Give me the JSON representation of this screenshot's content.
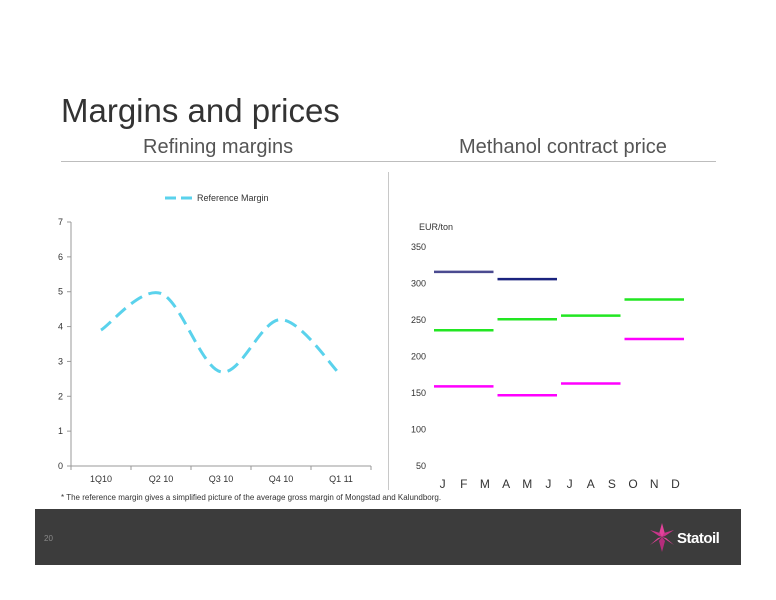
{
  "slide": {
    "title": "Margins and prices",
    "footnote": "* The reference margin gives a simplified picture of the average gross margin of Mongstad and Kalundborg.",
    "page_number": "20",
    "logo_text": "Statoil",
    "logo_icon": "statoil-star-icon"
  },
  "chart_data": [
    {
      "type": "line",
      "title": "Refining margins",
      "xlabel": "",
      "ylabel": "",
      "categories": [
        "1Q10",
        "Q2 10",
        "Q3 10",
        "Q4 10",
        "Q1 11"
      ],
      "series": [
        {
          "name": "Reference Margin",
          "values": [
            3.9,
            4.95,
            2.7,
            4.2,
            2.6
          ],
          "color": "#5ad2ec",
          "dash": "dashed",
          "smooth": true
        }
      ],
      "ylim": [
        0,
        7
      ],
      "yticks": [
        0,
        1,
        2,
        3,
        4,
        5,
        6,
        7
      ],
      "legend": "top-center",
      "grid": false
    },
    {
      "type": "bar",
      "subtype": "floating-segments",
      "title": "Methanol contract price",
      "ylabel": "EUR/ton",
      "categories": [
        "J",
        "F",
        "M",
        "A",
        "M",
        "J",
        "J",
        "A",
        "S",
        "O",
        "N",
        "D"
      ],
      "ylim": [
        50,
        350
      ],
      "yticks": [
        50,
        100,
        150,
        200,
        250,
        300,
        350
      ],
      "segments": [
        {
          "from": 0,
          "to": 2,
          "value": 316,
          "color": "#4a4a90"
        },
        {
          "from": 0,
          "to": 2,
          "value": 236,
          "color": "#22e622"
        },
        {
          "from": 0,
          "to": 2,
          "value": 159,
          "color": "#ff00ff"
        },
        {
          "from": 3,
          "to": 5,
          "value": 306,
          "color": "#1a237e"
        },
        {
          "from": 3,
          "to": 5,
          "value": 251,
          "color": "#22e622"
        },
        {
          "from": 3,
          "to": 5,
          "value": 147,
          "color": "#ff00ff"
        },
        {
          "from": 6,
          "to": 8,
          "value": 256,
          "color": "#22e622"
        },
        {
          "from": 6,
          "to": 8,
          "value": 163,
          "color": "#ff00ff"
        },
        {
          "from": 9,
          "to": 11,
          "value": 278,
          "color": "#22e622"
        },
        {
          "from": 9,
          "to": 11,
          "value": 224,
          "color": "#ff00ff"
        }
      ],
      "legend": "none",
      "grid": false
    }
  ]
}
